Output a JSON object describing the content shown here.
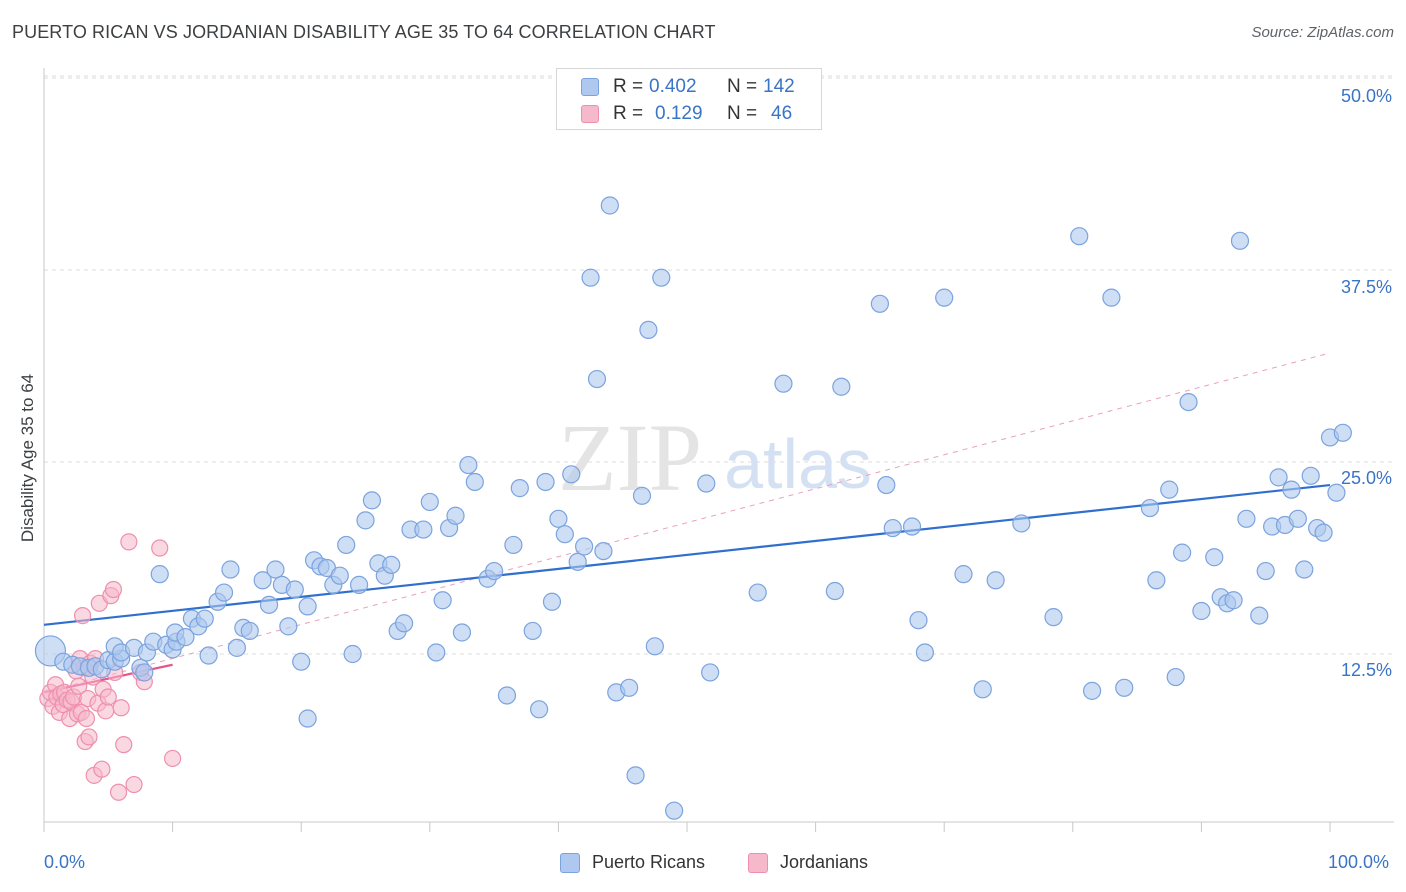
{
  "header": {
    "title": "PUERTO RICAN VS JORDANIAN DISABILITY AGE 35 TO 64 CORRELATION CHART",
    "source": "Source: ZipAtlas.com"
  },
  "watermark": {
    "part1": "ZIP",
    "part2": "atlas"
  },
  "legend": {
    "rows": [
      {
        "r_label": "R = ",
        "r_value": "0.402",
        "n_label": "N = ",
        "n_value": "142"
      },
      {
        "r_label": "R = ",
        "r_value": "0.129",
        "n_label": "N = ",
        "n_value": "46"
      }
    ]
  },
  "bottom_legend": [
    {
      "label": "Puerto Ricans"
    },
    {
      "label": "Jordanians"
    }
  ],
  "colors": {
    "blue_fill": "#aec8ef",
    "blue_stroke": "#7ba3de",
    "blue_line": "#2f6fce",
    "pink_fill": "#f6b8cb",
    "pink_stroke": "#ee8fae",
    "pink_line": "#e8558a",
    "axis_text": "#3a74c5",
    "grid": "#dcdcdc"
  },
  "chart_data": {
    "type": "scatter",
    "title": "PUERTO RICAN VS JORDANIAN DISABILITY AGE 35 TO 64 CORRELATION CHART",
    "xlabel": "",
    "ylabel": "Disability Age 35 to 64",
    "xlim": [
      0,
      100
    ],
    "ylim": [
      0,
      52
    ],
    "x_tick_labels": [
      "0.0%",
      "100.0%"
    ],
    "y_ticks": [
      12.5,
      25.0,
      37.5,
      50.0
    ],
    "y_tick_labels": [
      "12.5%",
      "25.0%",
      "37.5%",
      "50.0%"
    ],
    "series": [
      {
        "name": "Puerto Ricans",
        "R": 0.402,
        "N": 142,
        "trend": {
          "x": [
            0,
            100
          ],
          "y": [
            14.4,
            23.5
          ],
          "style": "solid"
        },
        "points": [
          [
            0.5,
            12.7
          ],
          [
            1.5,
            12.0
          ],
          [
            2.2,
            11.8
          ],
          [
            2.8,
            11.7
          ],
          [
            3.5,
            11.6
          ],
          [
            4.0,
            11.7
          ],
          [
            4.5,
            11.5
          ],
          [
            5.0,
            12.1
          ],
          [
            5.5,
            12.0
          ],
          [
            6.0,
            12.2
          ],
          [
            5.5,
            13.0
          ],
          [
            6.0,
            12.6
          ],
          [
            7.0,
            12.9
          ],
          [
            7.5,
            11.6
          ],
          [
            7.8,
            11.3
          ],
          [
            8.0,
            12.6
          ],
          [
            8.5,
            13.3
          ],
          [
            9.0,
            17.7
          ],
          [
            9.5,
            13.1
          ],
          [
            10.0,
            12.8
          ],
          [
            10.3,
            13.3
          ],
          [
            10.2,
            13.9
          ],
          [
            11.0,
            13.6
          ],
          [
            11.5,
            14.8
          ],
          [
            12.0,
            14.3
          ],
          [
            12.5,
            14.8
          ],
          [
            12.8,
            12.4
          ],
          [
            13.5,
            15.9
          ],
          [
            14.0,
            16.5
          ],
          [
            14.5,
            18.0
          ],
          [
            15.0,
            12.9
          ],
          [
            15.5,
            14.2
          ],
          [
            16.0,
            14.0
          ],
          [
            17.0,
            17.3
          ],
          [
            17.5,
            15.7
          ],
          [
            18.0,
            18.0
          ],
          [
            18.5,
            17.0
          ],
          [
            19.0,
            14.3
          ],
          [
            19.5,
            16.7
          ],
          [
            20.0,
            12.0
          ],
          [
            20.5,
            15.6
          ],
          [
            20.5,
            8.3
          ],
          [
            21.0,
            18.6
          ],
          [
            21.5,
            18.2
          ],
          [
            22.0,
            18.1
          ],
          [
            22.5,
            17.0
          ],
          [
            23.0,
            17.6
          ],
          [
            23.5,
            19.6
          ],
          [
            24.0,
            12.5
          ],
          [
            24.5,
            17.0
          ],
          [
            25.0,
            21.2
          ],
          [
            25.5,
            22.5
          ],
          [
            26.0,
            18.4
          ],
          [
            26.5,
            17.6
          ],
          [
            27.0,
            18.3
          ],
          [
            27.5,
            14.0
          ],
          [
            28.0,
            14.5
          ],
          [
            28.5,
            20.6
          ],
          [
            29.5,
            20.6
          ],
          [
            30.0,
            22.4
          ],
          [
            30.5,
            12.6
          ],
          [
            31.0,
            16.0
          ],
          [
            31.5,
            20.7
          ],
          [
            32.0,
            21.5
          ],
          [
            32.5,
            13.9
          ],
          [
            33.0,
            24.8
          ],
          [
            33.5,
            23.7
          ],
          [
            34.5,
            17.4
          ],
          [
            35.0,
            17.9
          ],
          [
            36.0,
            9.8
          ],
          [
            36.5,
            19.6
          ],
          [
            37.0,
            23.3
          ],
          [
            38.0,
            14.0
          ],
          [
            38.5,
            8.9
          ],
          [
            39.0,
            23.7
          ],
          [
            39.5,
            15.9
          ],
          [
            40.0,
            21.3
          ],
          [
            40.5,
            20.3
          ],
          [
            41.0,
            24.2
          ],
          [
            41.5,
            18.5
          ],
          [
            42.0,
            19.5
          ],
          [
            42.5,
            37.0
          ],
          [
            43.0,
            30.4
          ],
          [
            43.5,
            19.2
          ],
          [
            44.0,
            41.7
          ],
          [
            44.5,
            10.0
          ],
          [
            45.5,
            10.3
          ],
          [
            46.0,
            4.6
          ],
          [
            46.5,
            22.8
          ],
          [
            47.0,
            33.6
          ],
          [
            47.5,
            13.0
          ],
          [
            48.0,
            37.0
          ],
          [
            49.0,
            2.3
          ],
          [
            51.5,
            23.6
          ],
          [
            51.8,
            11.3
          ],
          [
            55.5,
            16.5
          ],
          [
            57.5,
            30.1
          ],
          [
            61.5,
            16.6
          ],
          [
            62.0,
            29.9
          ],
          [
            65.0,
            35.3
          ],
          [
            65.5,
            23.5
          ],
          [
            66.0,
            20.7
          ],
          [
            67.5,
            20.8
          ],
          [
            68.0,
            14.7
          ],
          [
            68.5,
            12.6
          ],
          [
            70.0,
            35.7
          ],
          [
            71.5,
            17.7
          ],
          [
            73.0,
            10.2
          ],
          [
            74.0,
            17.3
          ],
          [
            76.0,
            21.0
          ],
          [
            78.5,
            14.9
          ],
          [
            80.5,
            39.7
          ],
          [
            81.5,
            10.1
          ],
          [
            83.0,
            35.7
          ],
          [
            84.0,
            10.3
          ],
          [
            86.0,
            22.0
          ],
          [
            86.5,
            17.3
          ],
          [
            87.5,
            23.2
          ],
          [
            88.0,
            11.0
          ],
          [
            88.5,
            19.1
          ],
          [
            89.0,
            28.9
          ],
          [
            90.0,
            15.3
          ],
          [
            91.0,
            18.8
          ],
          [
            91.5,
            16.2
          ],
          [
            92.0,
            15.8
          ],
          [
            92.5,
            16.0
          ],
          [
            93.0,
            39.4
          ],
          [
            93.5,
            21.3
          ],
          [
            94.5,
            15.0
          ],
          [
            95.0,
            17.9
          ],
          [
            95.5,
            20.8
          ],
          [
            96.0,
            24.0
          ],
          [
            96.5,
            20.9
          ],
          [
            97.0,
            23.2
          ],
          [
            97.5,
            21.3
          ],
          [
            98.0,
            18.0
          ],
          [
            98.5,
            24.1
          ],
          [
            99.0,
            20.7
          ],
          [
            99.5,
            20.4
          ],
          [
            100.0,
            26.6
          ],
          [
            100.5,
            23.0
          ],
          [
            101.0,
            26.9
          ]
        ]
      },
      {
        "name": "Jordanians",
        "R": 0.129,
        "N": 46,
        "trend": {
          "x": [
            0,
            10
          ],
          "y": [
            10.0,
            11.8
          ],
          "style": "solid",
          "dashed_extension_to": [
            100,
            32.1
          ]
        },
        "points": [
          [
            0.3,
            9.6
          ],
          [
            0.5,
            10.0
          ],
          [
            0.7,
            9.1
          ],
          [
            0.9,
            10.5
          ],
          [
            1.0,
            9.7
          ],
          [
            1.2,
            8.7
          ],
          [
            1.3,
            9.9
          ],
          [
            1.5,
            9.2
          ],
          [
            1.6,
            10.0
          ],
          [
            1.8,
            9.5
          ],
          [
            2.0,
            8.3
          ],
          [
            2.1,
            9.4
          ],
          [
            2.3,
            9.7
          ],
          [
            2.5,
            11.4
          ],
          [
            2.6,
            8.6
          ],
          [
            2.7,
            10.4
          ],
          [
            2.8,
            12.2
          ],
          [
            2.9,
            8.7
          ],
          [
            3.0,
            15.0
          ],
          [
            3.1,
            11.6
          ],
          [
            3.2,
            6.8
          ],
          [
            3.3,
            8.3
          ],
          [
            3.4,
            9.6
          ],
          [
            3.5,
            7.1
          ],
          [
            3.6,
            11.9
          ],
          [
            3.8,
            11.0
          ],
          [
            3.9,
            4.6
          ],
          [
            4.0,
            12.2
          ],
          [
            4.2,
            9.3
          ],
          [
            4.3,
            15.8
          ],
          [
            4.5,
            5.0
          ],
          [
            4.6,
            10.2
          ],
          [
            4.8,
            8.8
          ],
          [
            5.0,
            9.7
          ],
          [
            5.2,
            16.3
          ],
          [
            5.4,
            16.7
          ],
          [
            5.5,
            11.3
          ],
          [
            5.8,
            3.5
          ],
          [
            6.0,
            9.0
          ],
          [
            6.2,
            6.6
          ],
          [
            6.6,
            19.8
          ],
          [
            7.0,
            4.0
          ],
          [
            7.5,
            11.3
          ],
          [
            7.8,
            10.7
          ],
          [
            9.0,
            19.4
          ],
          [
            10.0,
            5.7
          ]
        ]
      }
    ]
  }
}
